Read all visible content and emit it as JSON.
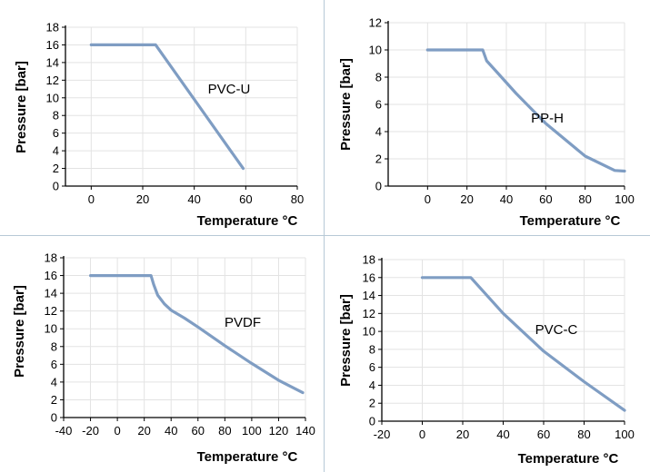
{
  "chart_data": [
    {
      "type": "line",
      "title": "",
      "xlabel": "Temperature °C",
      "ylabel": "Pressure [bar]",
      "series": [
        {
          "name": "PVC-U",
          "color": "#7f9dc3",
          "x": [
            0,
            25,
            59
          ],
          "y": [
            16,
            16,
            2
          ]
        }
      ],
      "annotation": "PVC-U",
      "xlim": [
        -10,
        80
      ],
      "ylim": [
        0,
        18
      ],
      "xticks": [
        0,
        20,
        40,
        60,
        80
      ],
      "yticks": [
        0,
        2,
        4,
        6,
        8,
        10,
        12,
        14,
        16,
        18
      ],
      "grid": true
    },
    {
      "type": "line",
      "title": "",
      "xlabel": "Temperature °C",
      "ylabel": "Pressure [bar]",
      "series": [
        {
          "name": "PP-H",
          "color": "#7f9dc3",
          "x": [
            0,
            28,
            30,
            35,
            45,
            60,
            80,
            95,
            100
          ],
          "y": [
            10,
            10,
            9.2,
            8.4,
            6.8,
            4.6,
            2.2,
            1.15,
            1.1
          ]
        }
      ],
      "annotation": "PP-H",
      "xlim": [
        -20,
        100
      ],
      "ylim": [
        0,
        12
      ],
      "xticks": [
        0,
        20,
        40,
        60,
        80,
        100
      ],
      "yticks": [
        0,
        2,
        4,
        6,
        8,
        10,
        12
      ],
      "grid": true
    },
    {
      "type": "line",
      "title": "",
      "xlabel": "Temperature  °C",
      "ylabel": "Pressure [bar]",
      "series": [
        {
          "name": "PVDF",
          "color": "#7f9dc3",
          "x": [
            -20,
            25,
            27,
            30,
            35,
            40,
            50,
            60,
            80,
            100,
            120,
            138
          ],
          "y": [
            16,
            16,
            15,
            13.8,
            12.8,
            12.1,
            11.2,
            10.2,
            8.1,
            6.1,
            4.2,
            2.8
          ]
        }
      ],
      "annotation": "PVDF",
      "xlim": [
        -40,
        140
      ],
      "ylim": [
        0,
        18
      ],
      "xticks": [
        -40,
        -20,
        0,
        20,
        40,
        60,
        80,
        100,
        120,
        140
      ],
      "yticks": [
        0,
        2,
        4,
        6,
        8,
        10,
        12,
        14,
        16,
        18
      ],
      "grid": true
    },
    {
      "type": "line",
      "title": "",
      "xlabel": "Temperature °C",
      "ylabel": "Pressure [bar]",
      "series": [
        {
          "name": "PVC-C",
          "color": "#7f9dc3",
          "x": [
            0,
            24,
            40,
            60,
            80,
            100
          ],
          "y": [
            16,
            16,
            12,
            7.8,
            4.4,
            1.2
          ]
        }
      ],
      "annotation": "PVC-C",
      "xlim": [
        -20,
        100
      ],
      "ylim": [
        0,
        18
      ],
      "xticks": [
        -20,
        0,
        20,
        40,
        60,
        80,
        100
      ],
      "yticks": [
        0,
        2,
        4,
        6,
        8,
        10,
        12,
        14,
        16,
        18
      ],
      "grid": true
    }
  ]
}
